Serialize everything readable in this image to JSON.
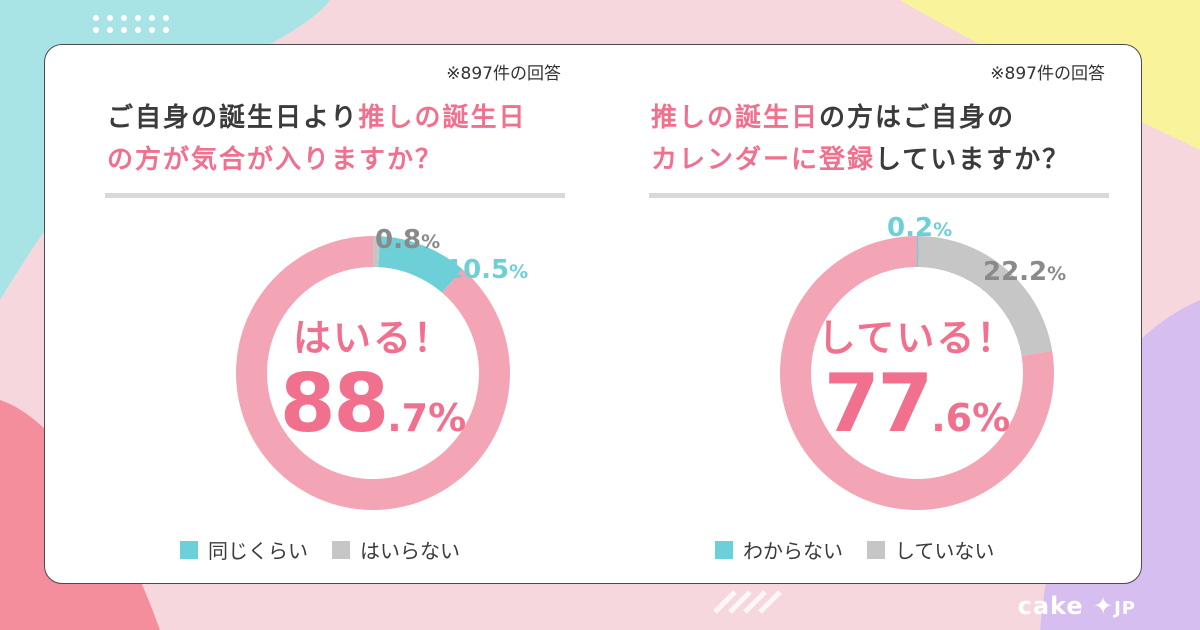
{
  "colors": {
    "pink": "#f4a5b5",
    "pink_text": "#f0708e",
    "teal": "#6dd0d8",
    "gray": "#c6c6c6",
    "gray_text": "#8a8a8a"
  },
  "brand": {
    "name": "cake",
    "suffix": "JP"
  },
  "charts": [
    {
      "note": "※897件の回答",
      "question": {
        "line1_a": "ご自身の誕生日より",
        "line1_b": "推しの誕生日",
        "line2_a": "の方が気合が入りますか？"
      },
      "center_label": "はいる！",
      "center_big": "88",
      "center_small": ".7%",
      "label_teal_big": "10.5",
      "label_gray_big": "0.8",
      "unit": "%",
      "legend": {
        "teal": "同じくらい",
        "gray": "はいらない"
      }
    },
    {
      "note": "※897件の回答",
      "question": {
        "line1_a": "推しの誕生日",
        "line1_b": "の方はご自身の",
        "line2_a": "カレンダーに登録",
        "line2_b": "していますか？"
      },
      "center_label": "している！",
      "center_big": "77",
      "center_small": ".6%",
      "label_teal_big": "0.2",
      "label_gray_big": "22.2",
      "unit": "%",
      "legend": {
        "teal": "わからない",
        "gray": "していない"
      }
    }
  ],
  "chart_data": [
    {
      "type": "pie",
      "title": "ご自身の誕生日より推しの誕生日の方が気合が入りますか？",
      "categories": [
        "はいる",
        "同じくらい",
        "はいらない"
      ],
      "values": [
        88.7,
        10.5,
        0.8
      ],
      "colors": [
        "#f4a5b5",
        "#6dd0d8",
        "#c6c6c6"
      ]
    },
    {
      "type": "pie",
      "title": "推しの誕生日の方はご自身のカレンダーに登録していますか？",
      "categories": [
        "している",
        "わからない",
        "していない"
      ],
      "values": [
        77.6,
        0.2,
        22.2
      ],
      "colors": [
        "#f4a5b5",
        "#6dd0d8",
        "#c6c6c6"
      ]
    }
  ]
}
